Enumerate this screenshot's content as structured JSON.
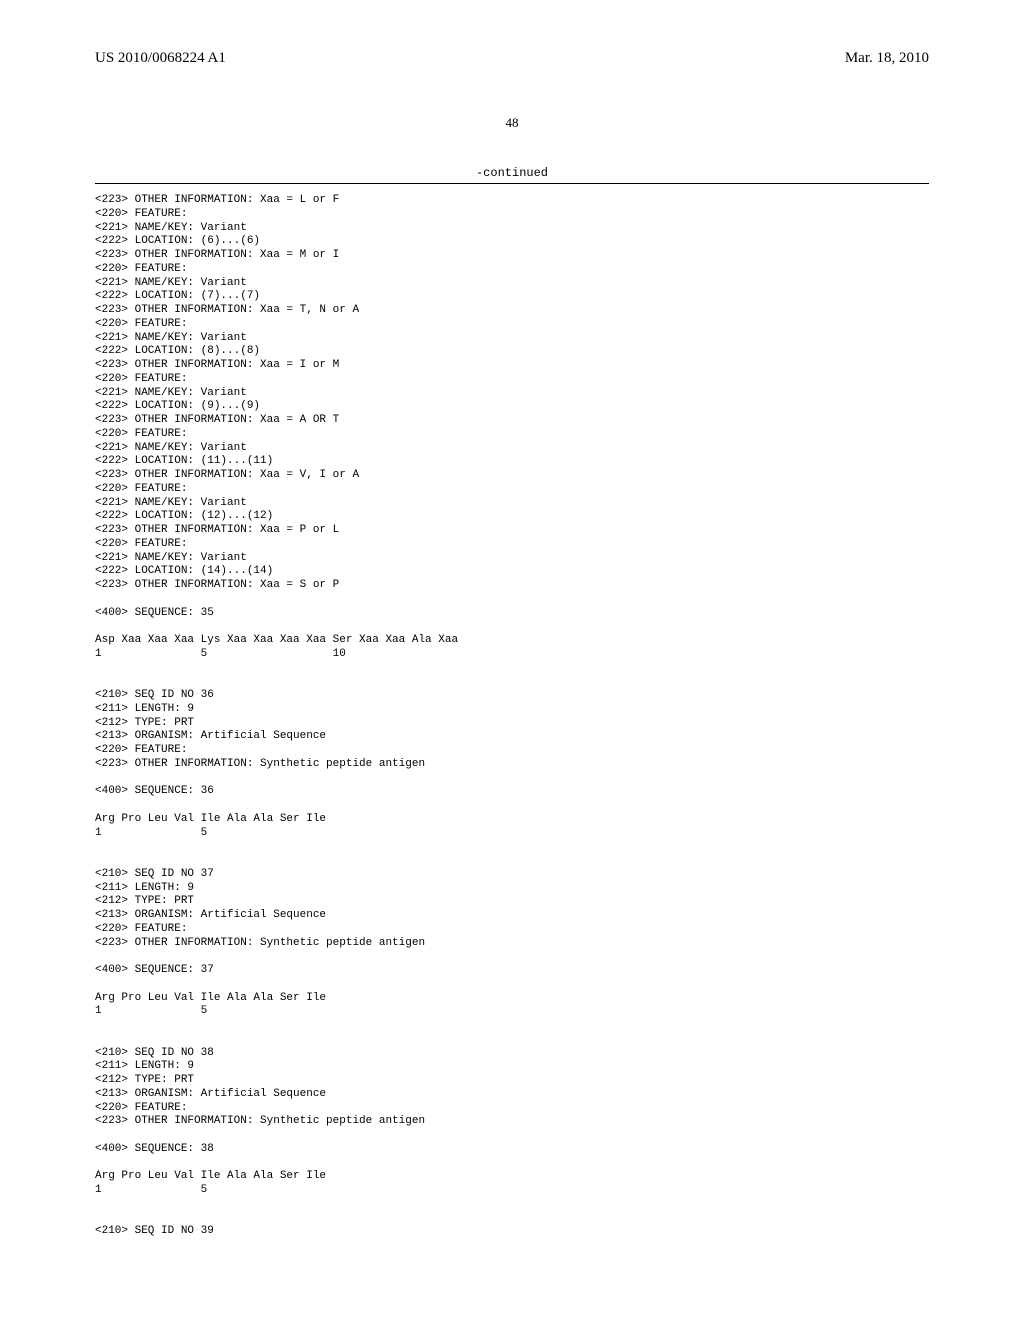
{
  "header": {
    "doc_number": "US 2010/0068224 A1",
    "doc_date": "Mar. 18, 2010"
  },
  "page_number": "48",
  "continued_label": "-continued",
  "sequence_text": "<223> OTHER INFORMATION: Xaa = L or F\n<220> FEATURE:\n<221> NAME/KEY: Variant\n<222> LOCATION: (6)...(6)\n<223> OTHER INFORMATION: Xaa = M or I\n<220> FEATURE:\n<221> NAME/KEY: Variant\n<222> LOCATION: (7)...(7)\n<223> OTHER INFORMATION: Xaa = T, N or A\n<220> FEATURE:\n<221> NAME/KEY: Variant\n<222> LOCATION: (8)...(8)\n<223> OTHER INFORMATION: Xaa = I or M\n<220> FEATURE:\n<221> NAME/KEY: Variant\n<222> LOCATION: (9)...(9)\n<223> OTHER INFORMATION: Xaa = A OR T\n<220> FEATURE:\n<221> NAME/KEY: Variant\n<222> LOCATION: (11)...(11)\n<223> OTHER INFORMATION: Xaa = V, I or A\n<220> FEATURE:\n<221> NAME/KEY: Variant\n<222> LOCATION: (12)...(12)\n<223> OTHER INFORMATION: Xaa = P or L\n<220> FEATURE:\n<221> NAME/KEY: Variant\n<222> LOCATION: (14)...(14)\n<223> OTHER INFORMATION: Xaa = S or P\n\n<400> SEQUENCE: 35\n\nAsp Xaa Xaa Xaa Lys Xaa Xaa Xaa Xaa Ser Xaa Xaa Ala Xaa\n1               5                   10\n\n\n<210> SEQ ID NO 36\n<211> LENGTH: 9\n<212> TYPE: PRT\n<213> ORGANISM: Artificial Sequence\n<220> FEATURE:\n<223> OTHER INFORMATION: Synthetic peptide antigen\n\n<400> SEQUENCE: 36\n\nArg Pro Leu Val Ile Ala Ala Ser Ile\n1               5\n\n\n<210> SEQ ID NO 37\n<211> LENGTH: 9\n<212> TYPE: PRT\n<213> ORGANISM: Artificial Sequence\n<220> FEATURE:\n<223> OTHER INFORMATION: Synthetic peptide antigen\n\n<400> SEQUENCE: 37\n\nArg Pro Leu Val Ile Ala Ala Ser Ile\n1               5\n\n\n<210> SEQ ID NO 38\n<211> LENGTH: 9\n<212> TYPE: PRT\n<213> ORGANISM: Artificial Sequence\n<220> FEATURE:\n<223> OTHER INFORMATION: Synthetic peptide antigen\n\n<400> SEQUENCE: 38\n\nArg Pro Leu Val Ile Ala Ala Ser Ile\n1               5\n\n\n<210> SEQ ID NO 39"
}
